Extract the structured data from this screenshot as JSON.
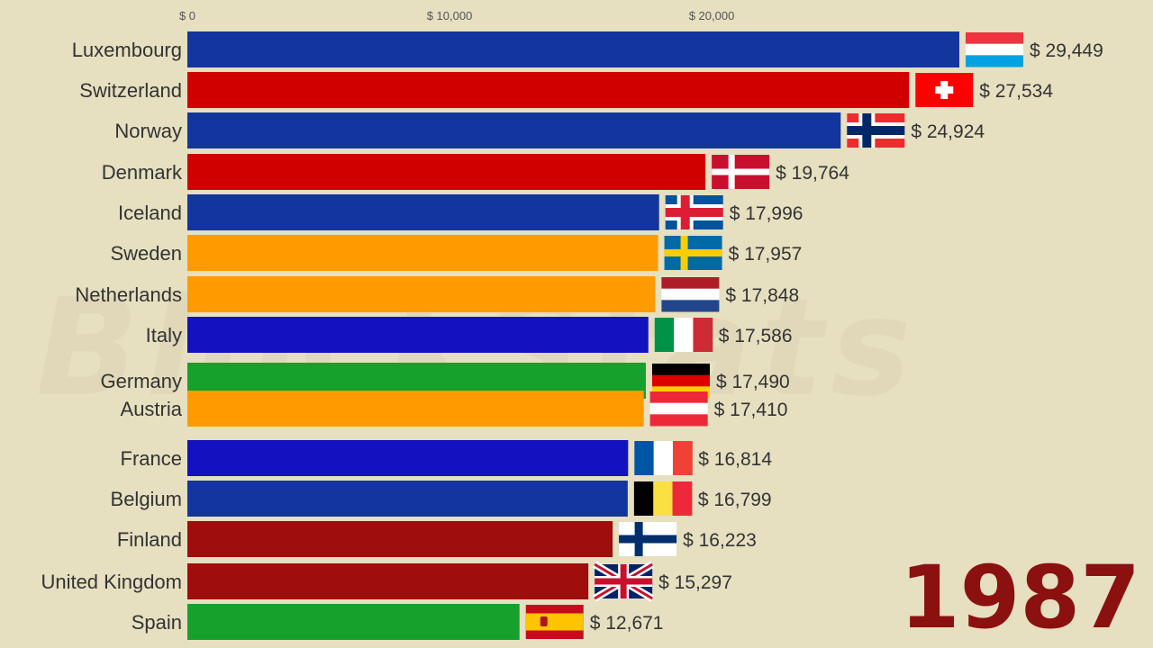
{
  "watermark": "BlockStats",
  "year": "1987",
  "colors": {
    "background": "#e6dfc0",
    "year": "#8b1010",
    "label": "#333333",
    "tick": "#555555"
  },
  "chart_data": {
    "type": "bar",
    "orientation": "horizontal",
    "xlim": [
      0,
      29449
    ],
    "grid": false,
    "x_ticks": [
      {
        "value": 0,
        "label": "$ 0"
      },
      {
        "value": 10000,
        "label": "$ 10,000"
      },
      {
        "value": 20000,
        "label": "$ 20,000"
      }
    ],
    "categories": [
      "Luxembourg",
      "Switzerland",
      "Norway",
      "Denmark",
      "Iceland",
      "Sweden",
      "Netherlands",
      "Italy",
      "Germany",
      "Austria",
      "France",
      "Belgium",
      "Finland",
      "United Kingdom",
      "Spain"
    ],
    "values": [
      29449,
      27534,
      24924,
      19764,
      17996,
      17957,
      17848,
      17586,
      17490,
      17410,
      16814,
      16799,
      16223,
      15297,
      12671
    ],
    "value_labels": [
      "$ 29,449",
      "$ 27,534",
      "$ 24,924",
      "$ 19,764",
      "$ 17,996",
      "$ 17,957",
      "$ 17,848",
      "$ 17,586",
      "$ 17,490",
      "$ 17,410",
      "$ 16,814",
      "$ 16,799",
      "$ 16,223",
      "$ 15,297",
      "$ 12,671"
    ],
    "bar_colors": [
      "#12369e",
      "#d10000",
      "#12369e",
      "#d10000",
      "#12369e",
      "#ff9b00",
      "#ff9b00",
      "#1212c0",
      "#16a12c",
      "#ff9b00",
      "#1212c0",
      "#12369e",
      "#a00d0d",
      "#a00d0d",
      "#16a12c"
    ],
    "flags": [
      "luxembourg-flag",
      "switzerland-flag",
      "norway-flag",
      "denmark-flag",
      "iceland-flag",
      "sweden-flag",
      "netherlands-flag",
      "italy-flag",
      "germany-flag",
      "austria-flag",
      "france-flag",
      "belgium-flag",
      "finland-flag",
      "united-kingdom-flag",
      "spain-flag"
    ]
  }
}
